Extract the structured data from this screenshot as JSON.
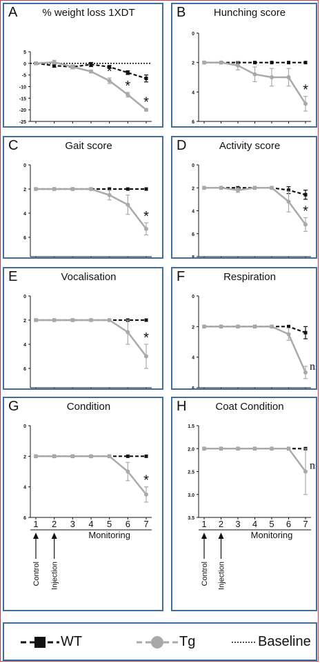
{
  "panels": [
    {
      "letter": "A",
      "title": "% weight loss 1XDT",
      "yticks": [
        5,
        0,
        -5,
        -10,
        -15,
        -20,
        -25
      ],
      "ylim": [
        5,
        -25
      ],
      "baseline": 0,
      "wt": [
        0,
        -1,
        -1.5,
        -0.5,
        -1.5,
        -4,
        -6.5
      ],
      "wt_err": [
        0.3,
        0.7,
        0.8,
        0.9,
        0.6,
        0.8,
        1.5
      ],
      "tg": [
        0,
        0.5,
        -1.5,
        -3.5,
        -7.5,
        -13.5,
        -20
      ],
      "tg_err": [
        0.3,
        0.8,
        0.8,
        0.6,
        1.2,
        1,
        0.5
      ],
      "marks": [
        {
          "i": 4,
          "text": "*"
        },
        {
          "i": 5,
          "text": "*"
        },
        {
          "i": 6,
          "text": "*"
        }
      ],
      "xaxis": false
    },
    {
      "letter": "B",
      "title": "Hunching score",
      "yticks": [
        0,
        2,
        4,
        6
      ],
      "ylim": [
        0,
        6
      ],
      "wt": [
        2,
        2,
        2,
        2,
        2,
        2,
        2
      ],
      "wt_err": [
        0,
        0,
        0,
        0,
        0,
        0,
        0
      ],
      "tg": [
        2,
        2,
        2.2,
        2.8,
        3,
        3,
        4.8
      ],
      "tg_err": [
        0,
        0,
        0.3,
        0.5,
        0.6,
        0.6,
        0.5
      ],
      "marks": [
        {
          "i": 6,
          "text": "*"
        }
      ],
      "xaxis": false
    },
    {
      "letter": "C",
      "title": "Gait score",
      "yticks": [
        0,
        2,
        4,
        6
      ],
      "ylim": [
        0,
        7.6
      ],
      "wt": [
        2,
        2,
        2,
        2,
        2,
        2,
        2
      ],
      "wt_err": [
        0,
        0,
        0,
        0,
        0,
        0,
        0
      ],
      "tg": [
        2,
        2,
        2,
        2,
        2.5,
        3.3,
        5.3
      ],
      "tg_err": [
        0,
        0,
        0,
        0,
        0.4,
        0.8,
        0.5
      ],
      "marks": [
        {
          "i": 6,
          "text": "*"
        }
      ],
      "xaxis": false
    },
    {
      "letter": "D",
      "title": "Activity score",
      "yticks": [
        0,
        2,
        4,
        6,
        8
      ],
      "ylim": [
        0,
        8
      ],
      "wt": [
        2,
        2,
        2,
        2,
        2,
        2.2,
        2.6
      ],
      "wt_err": [
        0,
        0,
        0,
        0,
        0,
        0.3,
        0.4
      ],
      "tg": [
        2,
        2,
        2.2,
        2,
        2,
        3.2,
        5.2
      ],
      "tg_err": [
        0,
        0,
        0.2,
        0,
        0,
        0.9,
        0.6
      ],
      "marks": [
        {
          "i": 6,
          "text": "*"
        }
      ],
      "xaxis": false
    },
    {
      "letter": "E",
      "title": "Vocalisation",
      "yticks": [
        0,
        2,
        4,
        6
      ],
      "ylim": [
        0,
        7.6
      ],
      "wt": [
        2,
        2,
        2,
        2,
        2,
        2,
        2
      ],
      "wt_err": [
        0,
        0,
        0,
        0,
        0,
        0,
        0
      ],
      "tg": [
        2,
        2,
        2,
        2,
        2,
        3,
        5
      ],
      "tg_err": [
        0,
        0,
        0,
        0,
        0,
        1,
        1
      ],
      "marks": [
        {
          "i": 6,
          "text": "*"
        }
      ],
      "xaxis": false
    },
    {
      "letter": "F",
      "title": "Respiration",
      "yticks": [
        0,
        2,
        4,
        6
      ],
      "ylim": [
        0,
        6
      ],
      "wt": [
        2,
        2,
        2,
        2,
        2,
        2,
        2.4
      ],
      "wt_err": [
        0,
        0,
        0,
        0,
        0,
        0,
        0.4
      ],
      "tg": [
        2,
        2,
        2,
        2,
        2,
        2.5,
        5
      ],
      "tg_err": [
        0,
        0,
        0,
        0,
        0,
        0.4,
        0.4
      ],
      "marks": [
        {
          "i": 6,
          "text": "ns"
        }
      ],
      "xaxis": false
    },
    {
      "letter": "G",
      "title": "Condition",
      "yticks": [
        0,
        2,
        4,
        6
      ],
      "ylim": [
        0,
        6
      ],
      "wt": [
        2,
        2,
        2,
        2,
        2,
        2,
        2
      ],
      "wt_err": [
        0,
        0,
        0,
        0,
        0,
        0,
        0
      ],
      "tg": [
        2,
        2,
        2,
        2,
        2,
        3,
        4.5
      ],
      "tg_err": [
        0,
        0,
        0,
        0,
        0,
        0.6,
        0.5
      ],
      "marks": [
        {
          "i": 6,
          "text": "*"
        }
      ],
      "xaxis": true
    },
    {
      "letter": "H",
      "title": "Coat Condition",
      "yticks": [
        1.5,
        2.0,
        2.5,
        3.0,
        3.5
      ],
      "ylim": [
        1.5,
        3.5
      ],
      "tick_fmt": "fixed1",
      "wt": [
        2,
        2,
        2,
        2,
        2,
        2,
        2
      ],
      "wt_err": [
        0,
        0,
        0,
        0,
        0,
        0,
        0
      ],
      "tg": [
        2,
        2,
        2,
        2,
        2,
        2,
        2.5
      ],
      "tg_err": [
        0,
        0,
        0,
        0,
        0,
        0,
        0.5
      ],
      "marks": [
        {
          "i": 6,
          "text": "ns"
        }
      ],
      "xaxis": true
    }
  ],
  "xaxis": {
    "ticks": [
      "1",
      "2",
      "3",
      "4",
      "5",
      "6",
      "7"
    ],
    "label": "Monitoring",
    "arrows": [
      "Control",
      "Injection"
    ]
  },
  "legend": {
    "wt": "WT",
    "tg": "Tg",
    "baseline": "Baseline"
  },
  "colors": {
    "wt": "#111111",
    "tg": "#a9a9a9",
    "panel_border": "#3a6ea5",
    "frame": "#d0374a"
  },
  "chart_data": [
    {
      "type": "line",
      "title": "% weight loss 1XDT",
      "categories": [
        "1",
        "2",
        "3",
        "4",
        "5",
        "6",
        "7"
      ],
      "series": [
        {
          "name": "WT",
          "values": [
            0,
            -1,
            -1.5,
            -0.5,
            -1.5,
            -4,
            -6.5
          ]
        },
        {
          "name": "Tg",
          "values": [
            0,
            0.5,
            -1.5,
            -3.5,
            -7.5,
            -13.5,
            -20
          ]
        }
      ],
      "ylim": [
        -25,
        5
      ]
    },
    {
      "type": "line",
      "title": "Hunching score",
      "categories": [
        "1",
        "2",
        "3",
        "4",
        "5",
        "6",
        "7"
      ],
      "series": [
        {
          "name": "WT",
          "values": [
            2,
            2,
            2,
            2,
            2,
            2,
            2
          ]
        },
        {
          "name": "Tg",
          "values": [
            2,
            2,
            2.2,
            2.8,
            3,
            3,
            4.8
          ]
        }
      ],
      "ylim": [
        0,
        6
      ]
    },
    {
      "type": "line",
      "title": "Gait score",
      "categories": [
        "1",
        "2",
        "3",
        "4",
        "5",
        "6",
        "7"
      ],
      "series": [
        {
          "name": "WT",
          "values": [
            2,
            2,
            2,
            2,
            2,
            2,
            2
          ]
        },
        {
          "name": "Tg",
          "values": [
            2,
            2,
            2,
            2,
            2.5,
            3.3,
            5.3
          ]
        }
      ],
      "ylim": [
        0,
        7.6
      ]
    },
    {
      "type": "line",
      "title": "Activity score",
      "categories": [
        "1",
        "2",
        "3",
        "4",
        "5",
        "6",
        "7"
      ],
      "series": [
        {
          "name": "WT",
          "values": [
            2,
            2,
            2,
            2,
            2,
            2.2,
            2.6
          ]
        },
        {
          "name": "Tg",
          "values": [
            2,
            2,
            2.2,
            2,
            2,
            3.2,
            5.2
          ]
        }
      ],
      "ylim": [
        0,
        8
      ]
    },
    {
      "type": "line",
      "title": "Vocalisation",
      "categories": [
        "1",
        "2",
        "3",
        "4",
        "5",
        "6",
        "7"
      ],
      "series": [
        {
          "name": "WT",
          "values": [
            2,
            2,
            2,
            2,
            2,
            2,
            2
          ]
        },
        {
          "name": "Tg",
          "values": [
            2,
            2,
            2,
            2,
            2,
            3,
            5
          ]
        }
      ],
      "ylim": [
        0,
        7.6
      ]
    },
    {
      "type": "line",
      "title": "Respiration",
      "categories": [
        "1",
        "2",
        "3",
        "4",
        "5",
        "6",
        "7"
      ],
      "series": [
        {
          "name": "WT",
          "values": [
            2,
            2,
            2,
            2,
            2,
            2,
            2.4
          ]
        },
        {
          "name": "Tg",
          "values": [
            2,
            2,
            2,
            2,
            2,
            2.5,
            5
          ]
        }
      ],
      "ylim": [
        0,
        6
      ]
    },
    {
      "type": "line",
      "title": "Condition",
      "categories": [
        "1",
        "2",
        "3",
        "4",
        "5",
        "6",
        "7"
      ],
      "series": [
        {
          "name": "WT",
          "values": [
            2,
            2,
            2,
            2,
            2,
            2,
            2
          ]
        },
        {
          "name": "Tg",
          "values": [
            2,
            2,
            2,
            2,
            2,
            3,
            4.5
          ]
        }
      ],
      "ylim": [
        0,
        6
      ]
    },
    {
      "type": "line",
      "title": "Coat Condition",
      "categories": [
        "1",
        "2",
        "3",
        "4",
        "5",
        "6",
        "7"
      ],
      "series": [
        {
          "name": "WT",
          "values": [
            2,
            2,
            2,
            2,
            2,
            2,
            2
          ]
        },
        {
          "name": "Tg",
          "values": [
            2,
            2,
            2,
            2,
            2,
            2,
            2.5
          ]
        }
      ],
      "ylim": [
        1.5,
        3.5
      ]
    }
  ]
}
